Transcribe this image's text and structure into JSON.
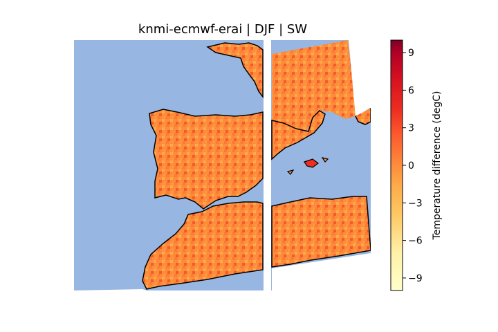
{
  "title": "knmi-ecmwf-erai | DJF | SW",
  "colorbar": {
    "label": "Temperature difference (degC)",
    "ticks": [
      {
        "value": 9,
        "label": "9"
      },
      {
        "value": 6,
        "label": "6"
      },
      {
        "value": 3,
        "label": "3"
      },
      {
        "value": 0,
        "label": "0"
      },
      {
        "value": -3,
        "label": "−3"
      },
      {
        "value": -6,
        "label": "−6"
      },
      {
        "value": -9,
        "label": "−9"
      }
    ],
    "range": [
      -10,
      10
    ],
    "colors": [
      "#ffffcc",
      "#fff1a8",
      "#fee087",
      "#fec965",
      "#feab49",
      "#fd8c3c",
      "#fc5b2e",
      "#ed2e21",
      "#d41020",
      "#b00026",
      "#800026"
    ]
  },
  "map": {
    "ocean_color": "#97b6e1",
    "land_fill_base": "#fd8c3c",
    "coastline_color": "#000000"
  }
}
